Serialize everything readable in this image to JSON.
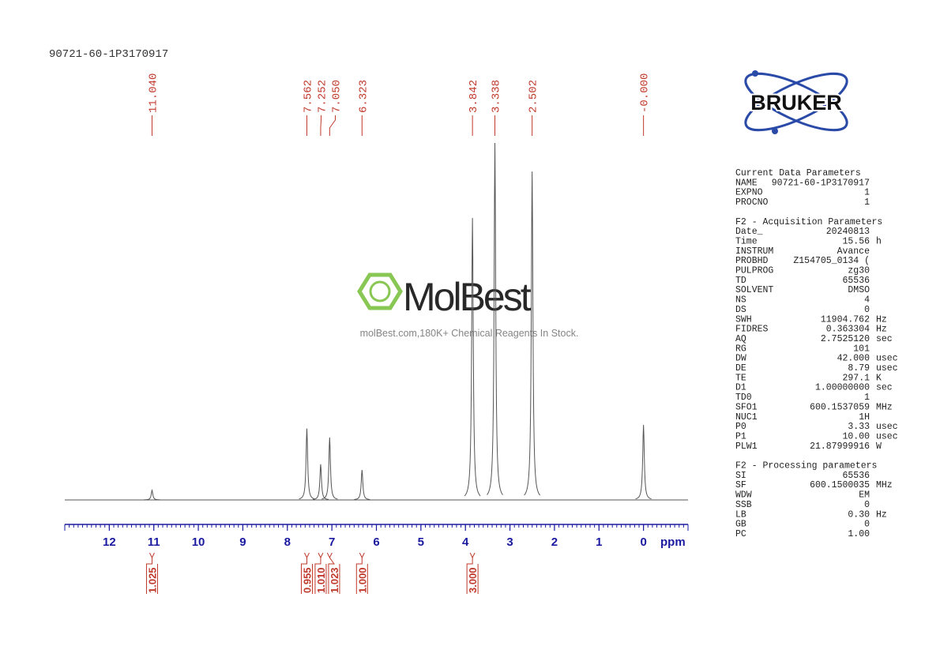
{
  "chart_data": {
    "type": "spectrum",
    "title": "90721-60-1P3170917",
    "x_unit": "ppm",
    "xlim": [
      13,
      -1
    ],
    "xticks": [
      12,
      11,
      10,
      9,
      8,
      7,
      6,
      5,
      4,
      3,
      2,
      1,
      0
    ],
    "ylim": [
      0,
      100
    ],
    "color": "#555555",
    "label_color": "#c0392b",
    "axis_color": "#1a1aa0",
    "peak_ppm": [
      {
        "value": 11.04,
        "label": "11.040"
      },
      {
        "value": 7.562,
        "label": "7.562"
      },
      {
        "value": 7.252,
        "label": "7.252"
      },
      {
        "value": 7.05,
        "label": "7.050"
      },
      {
        "value": 6.323,
        "label": "6.323"
      },
      {
        "value": 3.842,
        "label": "3.842"
      },
      {
        "value": 3.338,
        "label": "3.338"
      },
      {
        "value": 2.502,
        "label": "2.502"
      },
      {
        "value": 0,
        "label": "-0.000"
      }
    ],
    "peak_heights": [
      2.7,
      20,
      10,
      17.5,
      8.4,
      79,
      100,
      92,
      21
    ],
    "integral_ppm": [
      11.04,
      7.562,
      7.252,
      7.05,
      6.323,
      3.842
    ],
    "integrals": [
      {
        "value": 1.025,
        "label": "1.025"
      },
      {
        "value": 0.955,
        "label": "0.955"
      },
      {
        "value": 1.01,
        "label": "1.010"
      },
      {
        "value": 1.023,
        "label": "1.023"
      },
      {
        "value": 1,
        "label": "1.000"
      },
      {
        "value": 3,
        "label": "3.000"
      }
    ]
  },
  "logo": "BRUKER",
  "watermark": {
    "name": "MolBest",
    "tagline": "molBest.com,180K+ Chemical Reagents In Stock."
  },
  "parameters": [
    {
      "heading": "Current Data Parameters",
      "rows": [
        [
          "NAME",
          "90721-60-1P3170917",
          ""
        ],
        [
          "EXPNO",
          "1",
          ""
        ],
        [
          "PROCNO",
          "1",
          ""
        ]
      ]
    },
    {
      "heading": "F2 - Acquisition Parameters",
      "rows": [
        [
          "Date_",
          "20240813",
          ""
        ],
        [
          "Time",
          "15.56",
          "h"
        ],
        [
          "INSTRUM",
          "Avance",
          ""
        ],
        [
          "PROBHD",
          "Z154705_0134 (",
          ""
        ],
        [
          "PULPROG",
          "zg30",
          ""
        ],
        [
          "TD",
          "65536",
          ""
        ],
        [
          "SOLVENT",
          "DMSO",
          ""
        ],
        [
          "NS",
          "4",
          ""
        ],
        [
          "DS",
          "0",
          ""
        ],
        [
          "SWH",
          "11904.762",
          "Hz"
        ],
        [
          "FIDRES",
          "0.363304",
          "Hz"
        ],
        [
          "AQ",
          "2.7525120",
          "sec"
        ],
        [
          "RG",
          "101",
          ""
        ],
        [
          "DW",
          "42.000",
          "usec"
        ],
        [
          "DE",
          "8.79",
          "usec"
        ],
        [
          "TE",
          "297.1",
          "K"
        ],
        [
          "D1",
          "1.00000000",
          "sec"
        ],
        [
          "TD0",
          "1",
          ""
        ],
        [
          "SFO1",
          "600.1537059",
          "MHz"
        ],
        [
          "NUC1",
          "1H",
          ""
        ],
        [
          "P0",
          "3.33",
          "usec"
        ],
        [
          "P1",
          "10.00",
          "usec"
        ],
        [
          "PLW1",
          "21.87999916",
          "W"
        ]
      ]
    },
    {
      "heading": "F2 - Processing parameters",
      "rows": [
        [
          "SI",
          "65536",
          ""
        ],
        [
          "SF",
          "600.1500035",
          "MHz"
        ],
        [
          "WDW",
          "EM",
          ""
        ],
        [
          "SSB",
          "0",
          ""
        ],
        [
          "LB",
          "0.30",
          "Hz"
        ],
        [
          "GB",
          "0",
          ""
        ],
        [
          "PC",
          "1.00",
          ""
        ]
      ]
    }
  ]
}
